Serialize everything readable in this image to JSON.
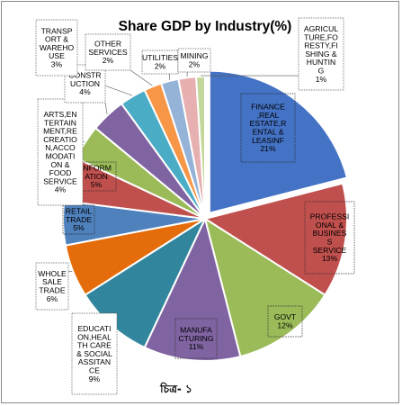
{
  "chart_data": {
    "type": "pie",
    "title": "Share GDP by Industry(%)",
    "unit": "%",
    "slices": [
      {
        "label_lines": [
          "FINANCE",
          ",REAL",
          "ESTATE,R",
          "ENTAL &",
          "LEASINF"
        ],
        "value": 21,
        "value_label": "21%",
        "color": "#4472c4"
      },
      {
        "label_lines": [
          "PROFESSI",
          "ONAL &",
          "BUSINES",
          "S",
          "SERVICE"
        ],
        "value": 13,
        "value_label": "13%",
        "color": "#c0504d"
      },
      {
        "label_lines": [
          "GOVT"
        ],
        "value": 12,
        "value_label": "12%",
        "color": "#9bbb59"
      },
      {
        "label_lines": [
          "MANUFA",
          "CTURING"
        ],
        "value": 11,
        "value_label": "11%",
        "color": "#8064a2"
      },
      {
        "label_lines": [
          "EDUCATI",
          "ON,HEAL",
          "TH CARE",
          "& SOCIAL",
          "ASSITAN",
          "CE"
        ],
        "value": 9,
        "value_label": "9%",
        "color": "#31859c"
      },
      {
        "label_lines": [
          "WHOLE",
          "SALE",
          "TRADE"
        ],
        "value": 6,
        "value_label": "6%",
        "color": "#e46c0a"
      },
      {
        "label_lines": [
          "RETAIL",
          "TRADE"
        ],
        "value": 5,
        "value_label": "5%",
        "color": "#4f81bd"
      },
      {
        "label_lines": [
          "INFORM",
          "ATION"
        ],
        "value": 5,
        "value_label": "5%",
        "color": "#c0504d"
      },
      {
        "label_lines": [
          "ARTS,EN",
          "TERTAIN",
          "MENT,RE",
          "CREATIO",
          "N,ACCO",
          "MODATI",
          "ON &",
          "FOOD",
          "SERVICE"
        ],
        "value": 4,
        "value_label": "4%",
        "color": "#9bbb59"
      },
      {
        "label_lines": [
          "CONSTR",
          "UCTION"
        ],
        "value": 4,
        "value_label": "4%",
        "color": "#8064a2"
      },
      {
        "label_lines": [
          "TRANSP",
          "ORT &",
          "WAREHO",
          "USE"
        ],
        "value": 3,
        "value_label": "3%",
        "color": "#4bacc6"
      },
      {
        "label_lines": [
          "OTHER",
          "SERVICES"
        ],
        "value": 2,
        "value_label": "2%",
        "color": "#f79646"
      },
      {
        "label_lines": [
          "UTILITIES"
        ],
        "value": 2,
        "value_label": "2%",
        "color": "#95b3d7"
      },
      {
        "label_lines": [
          "MINING"
        ],
        "value": 2,
        "value_label": "2%",
        "color": "#e6b0b0"
      },
      {
        "label_lines": [
          "AGRICUL",
          "TURE,FO",
          "RESTY,FI",
          "SHING &",
          "HUNTIN",
          "G"
        ],
        "value": 1,
        "value_label": "1%",
        "color": "#c4d79b"
      }
    ],
    "legend": "none"
  },
  "caption": "চিত্র- ১"
}
